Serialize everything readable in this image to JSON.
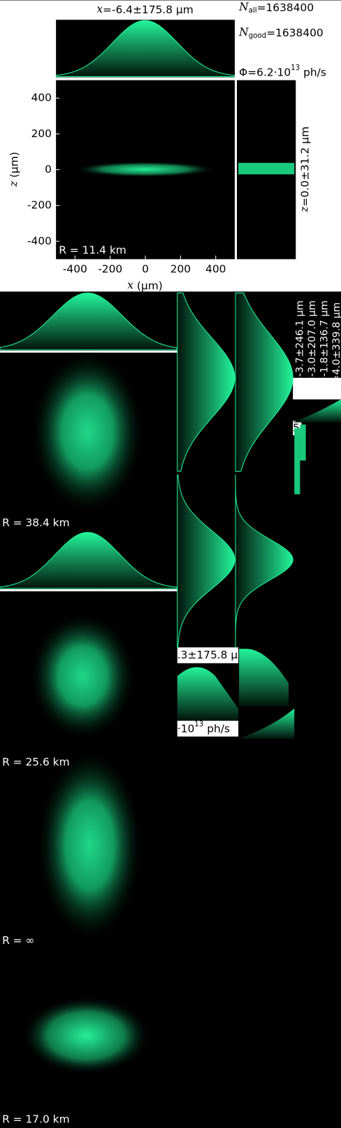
{
  "title": {
    "symbol": "x",
    "rest": "=-6.4±175.8 μm"
  },
  "n_all": {
    "symbol": "N",
    "sub": "all",
    "rest": "=1638400"
  },
  "n_good": {
    "symbol": "N",
    "sub": "good",
    "rest": "=1638400"
  },
  "flux": {
    "text": "Φ=6.2·10",
    "exp": "13",
    "unit": " ph/s"
  },
  "side_label": {
    "symbol": "z",
    "rest": "=0.0±31.2 μm"
  },
  "chart_data": {
    "type": "heatmap",
    "annotation": "R = 11.4 km",
    "x_label": {
      "symbol": "x",
      "rest": " (μm)"
    },
    "y_label": {
      "symbol": "z",
      "rest": " (μm)"
    },
    "xlim": [
      -500,
      500
    ],
    "ylim": [
      -500,
      500
    ],
    "xticks": [
      -400,
      -200,
      0,
      200,
      400
    ],
    "yticks": [
      -400,
      -200,
      0,
      200,
      400
    ]
  },
  "panels": [
    {
      "label": "R = 38.4 km"
    },
    {
      "label": "R = 25.6 km"
    },
    {
      "label": "R = ∞"
    },
    {
      "label": "R = 17.0 km"
    }
  ],
  "side_labels": [
    "z=-3.7±246.1 μm",
    "z=-3.0±207.0 μm",
    "z=-1.8±136.7 μm",
    "z=4.0±339.8 μm"
  ],
  "fragments": {
    "title": ".3±175.8 μ",
    "flux": "·10",
    "flux_exp": "13",
    "flux_unit": " ph/s",
    "n": "5"
  }
}
